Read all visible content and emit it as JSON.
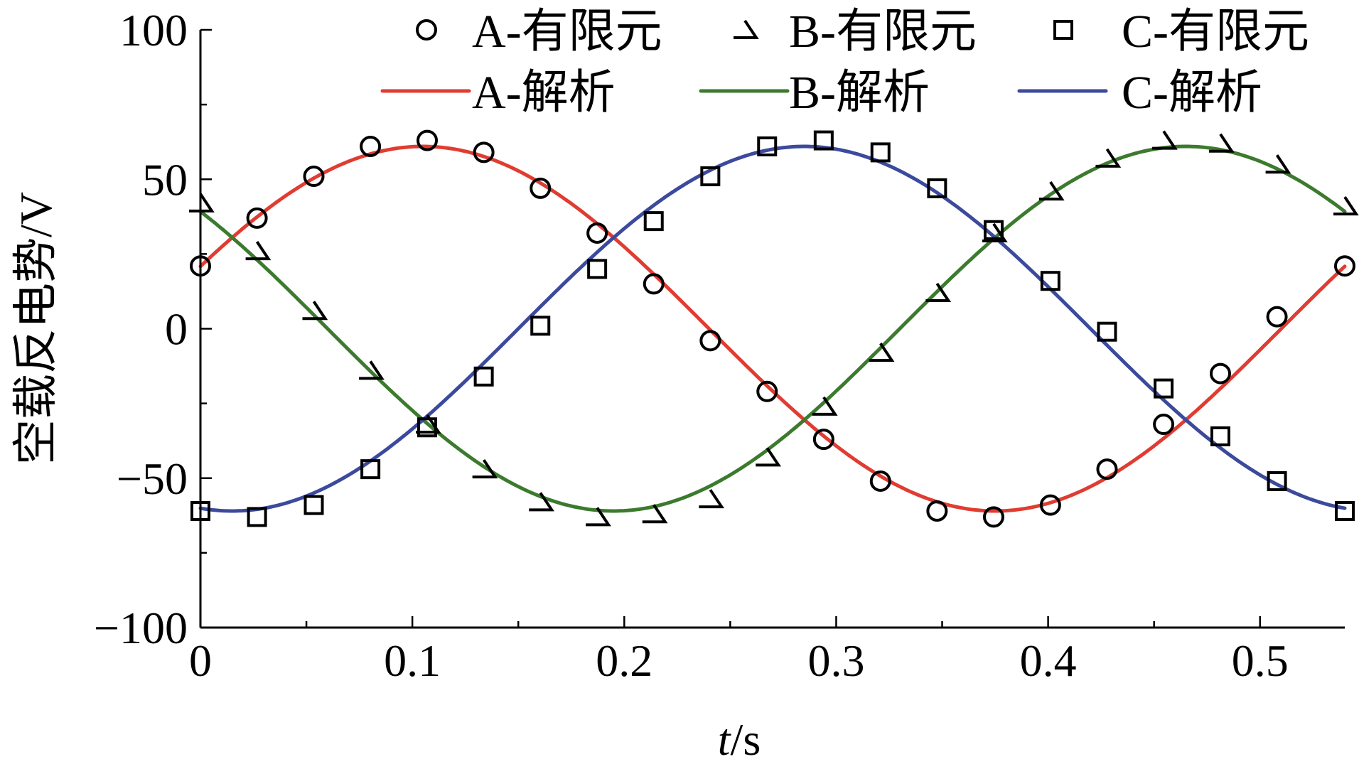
{
  "chart_data": {
    "type": "line",
    "xlabel_italic": "t",
    "xlabel_unit": "/s",
    "ylabel": "空载反电势/V",
    "xlim": [
      0,
      0.54
    ],
    "ylim": [
      -100,
      100
    ],
    "x_major_ticks": [
      0,
      0.1,
      0.2,
      0.3,
      0.4,
      0.5
    ],
    "x_tick_labels": [
      "0",
      "0.1",
      "0.2",
      "0.3",
      "0.4",
      "0.5"
    ],
    "x_minor_ticks": [
      0.05,
      0.15,
      0.25,
      0.35,
      0.45
    ],
    "y_major_ticks": [
      -100,
      -50,
      0,
      50,
      100
    ],
    "y_tick_labels": [
      "−100",
      "−50",
      "0",
      "50",
      "100"
    ],
    "y_minor_ticks": [
      -75,
      -25,
      25,
      75
    ],
    "grid": false,
    "legend_placement": "top",
    "fem_x": [
      0,
      0.0267,
      0.0535,
      0.0802,
      0.107,
      0.1337,
      0.1604,
      0.1872,
      0.2139,
      0.2406,
      0.2674,
      0.2941,
      0.3209,
      0.3476,
      0.3743,
      0.4011,
      0.4278,
      0.4545,
      0.4813,
      0.508,
      0.54
    ],
    "analytic": {
      "amplitude": 61,
      "period": 0.54,
      "phase_deg": {
        "A": 20,
        "B": 140,
        "C": 260
      }
    },
    "series": [
      {
        "name": "A-有限元",
        "kind": "markers",
        "marker": "circle",
        "values": [
          21,
          37,
          51,
          61,
          63,
          59,
          47,
          32,
          15,
          -4,
          -21,
          -37,
          -51,
          -61,
          -63,
          -59,
          -47,
          -32,
          -15,
          4,
          21
        ]
      },
      {
        "name": "B-有限元",
        "kind": "markers",
        "marker": "triangle",
        "values": [
          42,
          26,
          6,
          -14,
          -32,
          -47,
          -58,
          -63,
          -62,
          -57,
          -43,
          -26,
          -8,
          12,
          32,
          46,
          57,
          63,
          62,
          55,
          41
        ]
      },
      {
        "name": "C-有限元",
        "kind": "markers",
        "marker": "square",
        "values": [
          -61,
          -63,
          -59,
          -47,
          -33,
          -16,
          1,
          20,
          36,
          51,
          61,
          63,
          59,
          47,
          33,
          16,
          -1,
          -20,
          -36,
          -51,
          -61
        ]
      },
      {
        "name": "A-解析",
        "kind": "line",
        "color": "#e03c31"
      },
      {
        "name": "B-解析",
        "kind": "line",
        "color": "#3c7a2e"
      },
      {
        "name": "C-解析",
        "kind": "line",
        "color": "#3b4a9c"
      }
    ]
  }
}
